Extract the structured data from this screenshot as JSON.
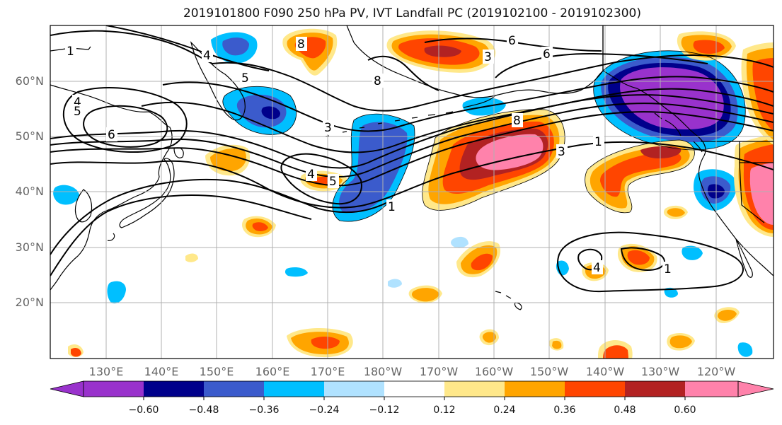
{
  "title": "2019101800 F090 250 hPa PV, IVT Landfall PC (2019102100 - 2019102300)",
  "map": {
    "latitude_labels": [
      "60°N",
      "50°N",
      "40°N",
      "30°N",
      "20°N"
    ],
    "longitude_labels": [
      "130°E",
      "140°E",
      "150°E",
      "160°E",
      "170°E",
      "180°W",
      "170°W",
      "160°W",
      "150°W",
      "140°W",
      "130°W",
      "120°W"
    ],
    "contour_labels": [
      "1",
      "4",
      "5",
      "6",
      "8",
      "4",
      "5",
      "4",
      "5",
      "3",
      "8",
      "3",
      "6",
      "6",
      "8",
      "3",
      "1",
      "1",
      "1",
      "4"
    ],
    "colors": {
      "coast": "#000000",
      "grid": "#b0b0b0",
      "contour": "#000000"
    }
  },
  "colorbar": {
    "tick_labels": [
      "−0.60",
      "−0.48",
      "−0.36",
      "−0.24",
      "−0.12",
      "0.12",
      "0.24",
      "0.36",
      "0.48",
      "0.60"
    ],
    "colors": [
      "#9932cc",
      "#00008b",
      "#3b5bcc",
      "#00bfff",
      "#b0e2ff",
      "#ffffff",
      "#ffe88a",
      "#ffa500",
      "#ff4500",
      "#b22222",
      "#ff82ab"
    ]
  }
}
